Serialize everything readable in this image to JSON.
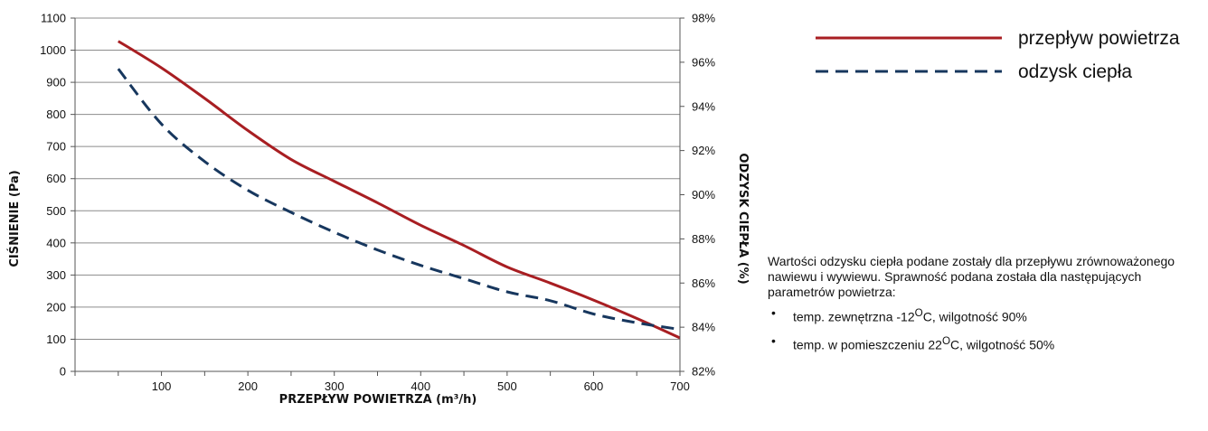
{
  "chart_data": {
    "type": "line",
    "xlabel": "PRZEPŁYW POWIETRZA (m³/h)",
    "ylabel": "CIŚNIENIE (Pa)",
    "y2label": "ODZYSK CIEPŁA (%)",
    "xlim": [
      0,
      700
    ],
    "ylim": [
      0,
      1100
    ],
    "y2lim": [
      82,
      98
    ],
    "x_ticks": [
      "100",
      "200",
      "300",
      "400",
      "500",
      "600",
      "700"
    ],
    "y_ticks": [
      "0",
      "100",
      "200",
      "300",
      "400",
      "500",
      "600",
      "700",
      "800",
      "900",
      "1000",
      "1100"
    ],
    "y2_ticks": [
      "82%",
      "84%",
      "86%",
      "88%",
      "90%",
      "92%",
      "94%",
      "96%",
      "98%"
    ],
    "grid": true,
    "legend_position": "top-right",
    "series": [
      {
        "name": "przepływ powietrza",
        "axis": "left",
        "color": "#a81e22",
        "style": "solid",
        "x": [
          50,
          100,
          150,
          200,
          250,
          300,
          350,
          400,
          450,
          500,
          550,
          600,
          650,
          700
        ],
        "y": [
          1028,
          945,
          850,
          750,
          660,
          592,
          525,
          455,
          392,
          325,
          275,
          222,
          165,
          104
        ]
      },
      {
        "name": "odzysk ciepła",
        "axis": "right",
        "color": "#17375e",
        "style": "dashed",
        "x": [
          50,
          100,
          150,
          200,
          250,
          300,
          350,
          400,
          450,
          500,
          550,
          600,
          650,
          700
        ],
        "y": [
          95.7,
          93.2,
          91.5,
          90.2,
          89.2,
          88.3,
          87.5,
          86.8,
          86.2,
          85.6,
          85.2,
          84.6,
          84.2,
          83.9
        ]
      }
    ]
  },
  "note": {
    "text": "Wartości odzysku ciepła podane zostały dla przepływu zrównoważonego nawiewu i wywiewu. Sprawność podana została dla następujących parametrów powietrza:",
    "bullet_symbol": "•",
    "items": [
      {
        "prefix": "temp. zewnętrzna -12",
        "sup": "O",
        "suffix": "C, wilgotność 90%"
      },
      {
        "prefix": "temp. w pomieszczeniu 22",
        "sup": "O",
        "suffix": "C, wilgotność 50%"
      }
    ]
  }
}
